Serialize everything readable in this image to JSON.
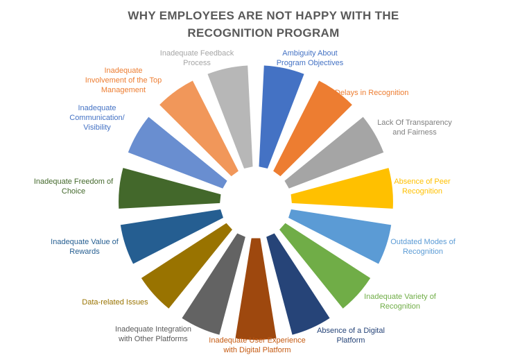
{
  "chart_data": {
    "type": "pie",
    "title_lines": [
      "WHY EMPLOYEES ARE NOT HAPPY WITH THE",
      "RECOGNITION PROGRAM"
    ],
    "title": "WHY EMPLOYEES ARE NOT HAPPY WITH THE RECOGNITION PROGRAM",
    "legend": "none",
    "slices": [
      {
        "label": [
          "Ambiguity About",
          "Program Objectives"
        ],
        "value": 1,
        "color": "#4472C4",
        "label_color": "#4472C4"
      },
      {
        "label": [
          "Delays in Recognition"
        ],
        "value": 1,
        "color": "#ED7D31",
        "label_color": "#ED7D31"
      },
      {
        "label": [
          "Lack Of Transparency",
          "and Fairness"
        ],
        "value": 1,
        "color": "#A5A5A5",
        "label_color": "#7F7F7F"
      },
      {
        "label": [
          "Absence of Peer",
          "Recognition"
        ],
        "value": 1,
        "color": "#FFC000",
        "label_color": "#FFC000"
      },
      {
        "label": [
          "Outdated Modes of",
          "Recognition"
        ],
        "value": 1,
        "color": "#5B9BD5",
        "label_color": "#5B9BD5"
      },
      {
        "label": [
          "Inadequate Variety of",
          "Recognition"
        ],
        "value": 1,
        "color": "#70AD47",
        "label_color": "#70AD47"
      },
      {
        "label": [
          "Absence of a Digital",
          "Platform"
        ],
        "value": 1,
        "color": "#264478",
        "label_color": "#264478"
      },
      {
        "label": [
          "Inadequate User Experience",
          "with Digital Platform"
        ],
        "value": 1,
        "color": "#9E480E",
        "label_color": "#C55A11"
      },
      {
        "label": [
          "Inadequate Integration",
          "with Other Platforms"
        ],
        "value": 1,
        "color": "#636363",
        "label_color": "#595959"
      },
      {
        "label": [
          "Data-related Issues"
        ],
        "value": 1,
        "color": "#997300",
        "label_color": "#997300"
      },
      {
        "label": [
          "Inadequate Value of",
          "Rewards"
        ],
        "value": 1,
        "color": "#255E91",
        "label_color": "#255E91"
      },
      {
        "label": [
          "Inadequate Freedom of",
          "Choice"
        ],
        "value": 1,
        "color": "#43682B",
        "label_color": "#43682B"
      },
      {
        "label": [
          "Inadequate",
          "Communication/",
          "Visibility"
        ],
        "value": 1,
        "color": "#698ED0",
        "label_color": "#4472C4"
      },
      {
        "label": [
          "Inadequate",
          "Involvement of the Top",
          "Management"
        ],
        "value": 1,
        "color": "#F1975A",
        "label_color": "#ED7D31"
      },
      {
        "label": [
          "Inadequate Feedback",
          "Process"
        ],
        "value": 1,
        "color": "#B7B7B7",
        "label_color": "#A5A5A5"
      }
    ]
  }
}
